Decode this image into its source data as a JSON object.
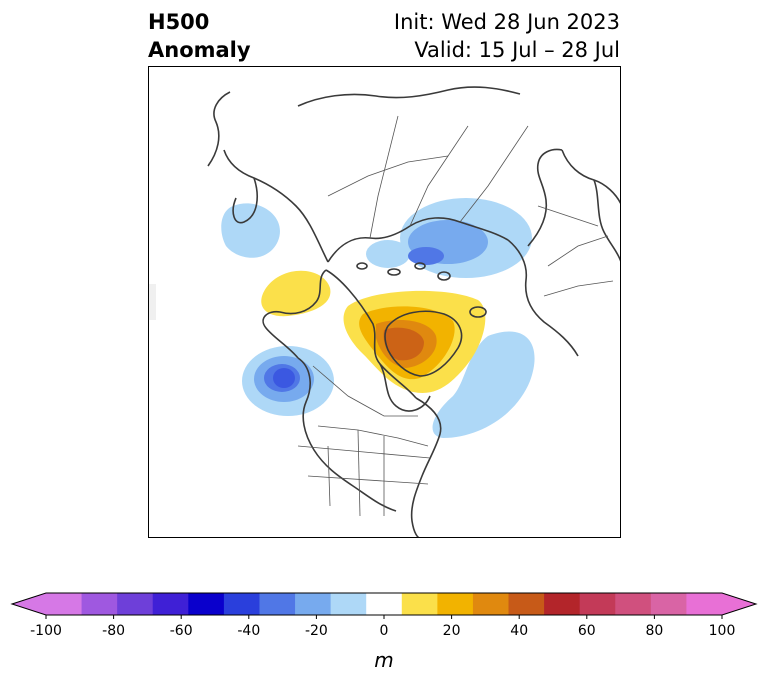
{
  "title": {
    "left_line1": "H500",
    "left_line2": "Anomaly",
    "right_line1": "Init: Wed 28 Jun 2023",
    "right_line2": "Valid: 15 Jul – 28 Jul"
  },
  "colorbar": {
    "boundaries": [
      -100,
      -90,
      -80,
      -70,
      -60,
      -50,
      -40,
      -30,
      -20,
      -10,
      10,
      20,
      30,
      40,
      50,
      60,
      70,
      80,
      90,
      100
    ],
    "colors": [
      "#d678e6",
      "#9f58e0",
      "#6e3fd9",
      "#3f20d6",
      "#0a00cc",
      "#2a3fdc",
      "#5077e6",
      "#77aaee",
      "#aed8f7",
      "#ffffff",
      "#fbe04a",
      "#f2b300",
      "#e0890f",
      "#c75a18",
      "#b3252a",
      "#c33a58",
      "#d0507e",
      "#d964a5",
      "#e870d6"
    ],
    "under_color": "#d678e6",
    "over_color": "#e870d6",
    "tick_labels": [
      "-100",
      "-80",
      "-60",
      "-40",
      "-20",
      "0",
      "20",
      "40",
      "60",
      "80",
      "100"
    ],
    "label": "m"
  },
  "map": {
    "projection": "polar stereographic, North America / North Pole view",
    "anomalies": [
      {
        "region": "Gulf of Alaska / NE Pacific",
        "sign": "negative",
        "peak_m": -50
      },
      {
        "region": "Kara Sea / northern Russia",
        "sign": "negative",
        "peak_m": -40
      },
      {
        "region": "Aleutians / Bering Sea",
        "sign": "negative",
        "peak_m": -20
      },
      {
        "region": "East Siberian Sea / Chukotka",
        "sign": "positive",
        "peak_m": 20
      },
      {
        "region": "Greenland / Baffin Bay / Canadian Arctic",
        "sign": "positive",
        "peak_m": 50
      },
      {
        "region": "Western North Atlantic",
        "sign": "negative",
        "peak_m": -20
      }
    ]
  }
}
